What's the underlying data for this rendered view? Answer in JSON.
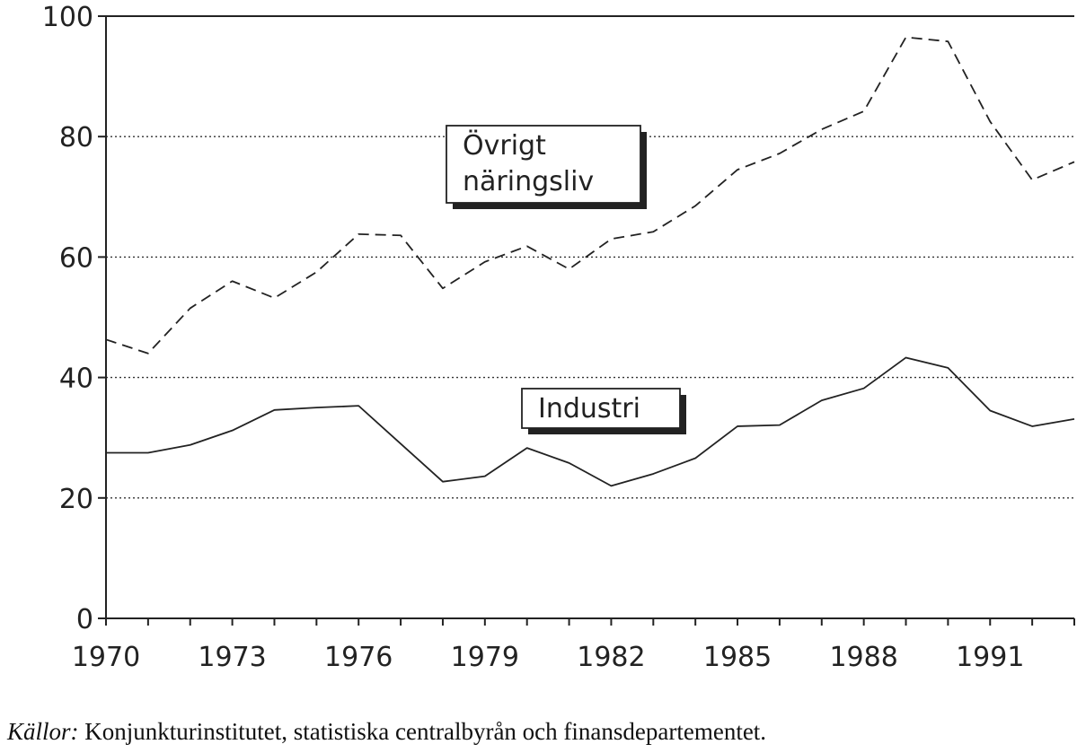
{
  "chart_data": {
    "type": "line",
    "x": [
      1970,
      1971,
      1972,
      1973,
      1974,
      1975,
      1976,
      1977,
      1978,
      1979,
      1980,
      1981,
      1982,
      1983,
      1984,
      1985,
      1986,
      1987,
      1988,
      1989,
      1990,
      1991,
      1992,
      1993
    ],
    "series": [
      {
        "name": "Övrigt näringsliv",
        "name_lines": [
          "Övrigt",
          "näringsliv"
        ],
        "style": "dashed",
        "values": [
          46.3,
          44.0,
          51.5,
          56.0,
          53.2,
          57.5,
          63.8,
          63.6,
          54.8,
          59.2,
          61.8,
          58.0,
          63.0,
          64.2,
          68.5,
          74.5,
          77.2,
          81.2,
          84.2,
          96.5,
          95.8,
          82.5,
          72.8,
          75.8
        ]
      },
      {
        "name": "Industri",
        "style": "solid",
        "values": [
          27.5,
          27.5,
          28.8,
          31.2,
          34.6,
          35.0,
          35.3,
          29.0,
          22.7,
          23.6,
          28.3,
          25.8,
          22.0,
          24.0,
          26.6,
          31.9,
          32.1,
          36.2,
          38.2,
          43.3,
          41.6,
          34.5,
          31.9,
          33.1
        ]
      }
    ],
    "ylim": [
      0,
      100
    ],
    "yticks": [
      0,
      20,
      40,
      60,
      80,
      100
    ],
    "xlim": [
      1970,
      1993
    ],
    "xtick_labels": [
      1970,
      1973,
      1976,
      1979,
      1982,
      1985,
      1988,
      1991
    ],
    "title": "",
    "xlabel": "",
    "ylabel": "",
    "grid": "horizontal dotted",
    "colors": {
      "line": "#222222",
      "background": "#ffffff"
    }
  },
  "source": {
    "prefix": "Källor:",
    "text": " Konjunkturinstitutet, statistiska centralbyrån och finansdepartementet."
  }
}
